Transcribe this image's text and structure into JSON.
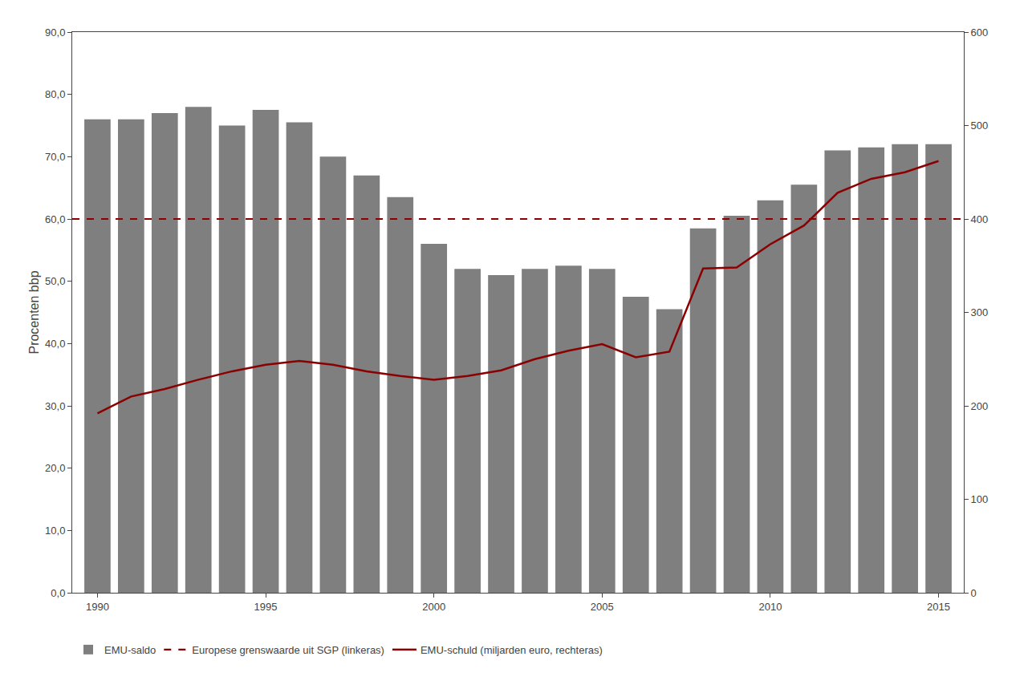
{
  "chart_data": {
    "type": "bar",
    "x": [
      1990,
      1991,
      1992,
      1993,
      1994,
      1995,
      1996,
      1997,
      1998,
      1999,
      2000,
      2001,
      2002,
      2003,
      2004,
      2005,
      2006,
      2007,
      2008,
      2009,
      2010,
      2011,
      2012,
      2013,
      2014,
      2015
    ],
    "series": [
      {
        "name": "EMU-saldo",
        "type": "bar",
        "color": "#7f7f7f",
        "values": [
          76.0,
          76.0,
          77.0,
          78.0,
          75.0,
          77.5,
          75.5,
          70.0,
          67.0,
          63.5,
          56.0,
          52.0,
          51.0,
          52.0,
          52.5,
          52.0,
          47.5,
          45.5,
          58.5,
          60.5,
          63.0,
          65.5,
          71.0,
          71.5,
          72.0,
          72.0
        ]
      },
      {
        "name": "EMU-schuld (miljarden euro, rechteras)",
        "type": "line",
        "axis": "y2",
        "color": "#8B0000",
        "line_style": "solid",
        "values": [
          192,
          210,
          218,
          228,
          237,
          244,
          248,
          244,
          237,
          232,
          228,
          232,
          238,
          250,
          259,
          266,
          252,
          258,
          347,
          348,
          373,
          393,
          428,
          443,
          450,
          462
        ]
      }
    ],
    "threshold": {
      "name": "Europese grenswaarde uit SGP (linkeras)",
      "value": 60.0,
      "color": "#8B0000",
      "line_style": "dashed"
    },
    "ylabel": "Procenten bbp",
    "xlim": [
      1989.25,
      2015.75
    ],
    "xticks": [
      1990,
      1995,
      2000,
      2005,
      2010,
      2015
    ],
    "ylim": [
      0,
      90
    ],
    "yticks": [
      {
        "value": 0,
        "label": "0,0"
      },
      {
        "value": 10,
        "label": "10,0"
      },
      {
        "value": 20,
        "label": "20,0"
      },
      {
        "value": 30,
        "label": "30,0"
      },
      {
        "value": 40,
        "label": "40,0"
      },
      {
        "value": 50,
        "label": "50,0"
      },
      {
        "value": 60,
        "label": "60,0"
      },
      {
        "value": 70,
        "label": "70,0"
      },
      {
        "value": 80,
        "label": "80,0"
      },
      {
        "value": 90,
        "label": "90,0"
      }
    ],
    "y2lim": [
      0,
      600
    ],
    "y2ticks": [
      0,
      100,
      200,
      300,
      400,
      500,
      600
    ],
    "grid": false,
    "legend": "lower left"
  }
}
